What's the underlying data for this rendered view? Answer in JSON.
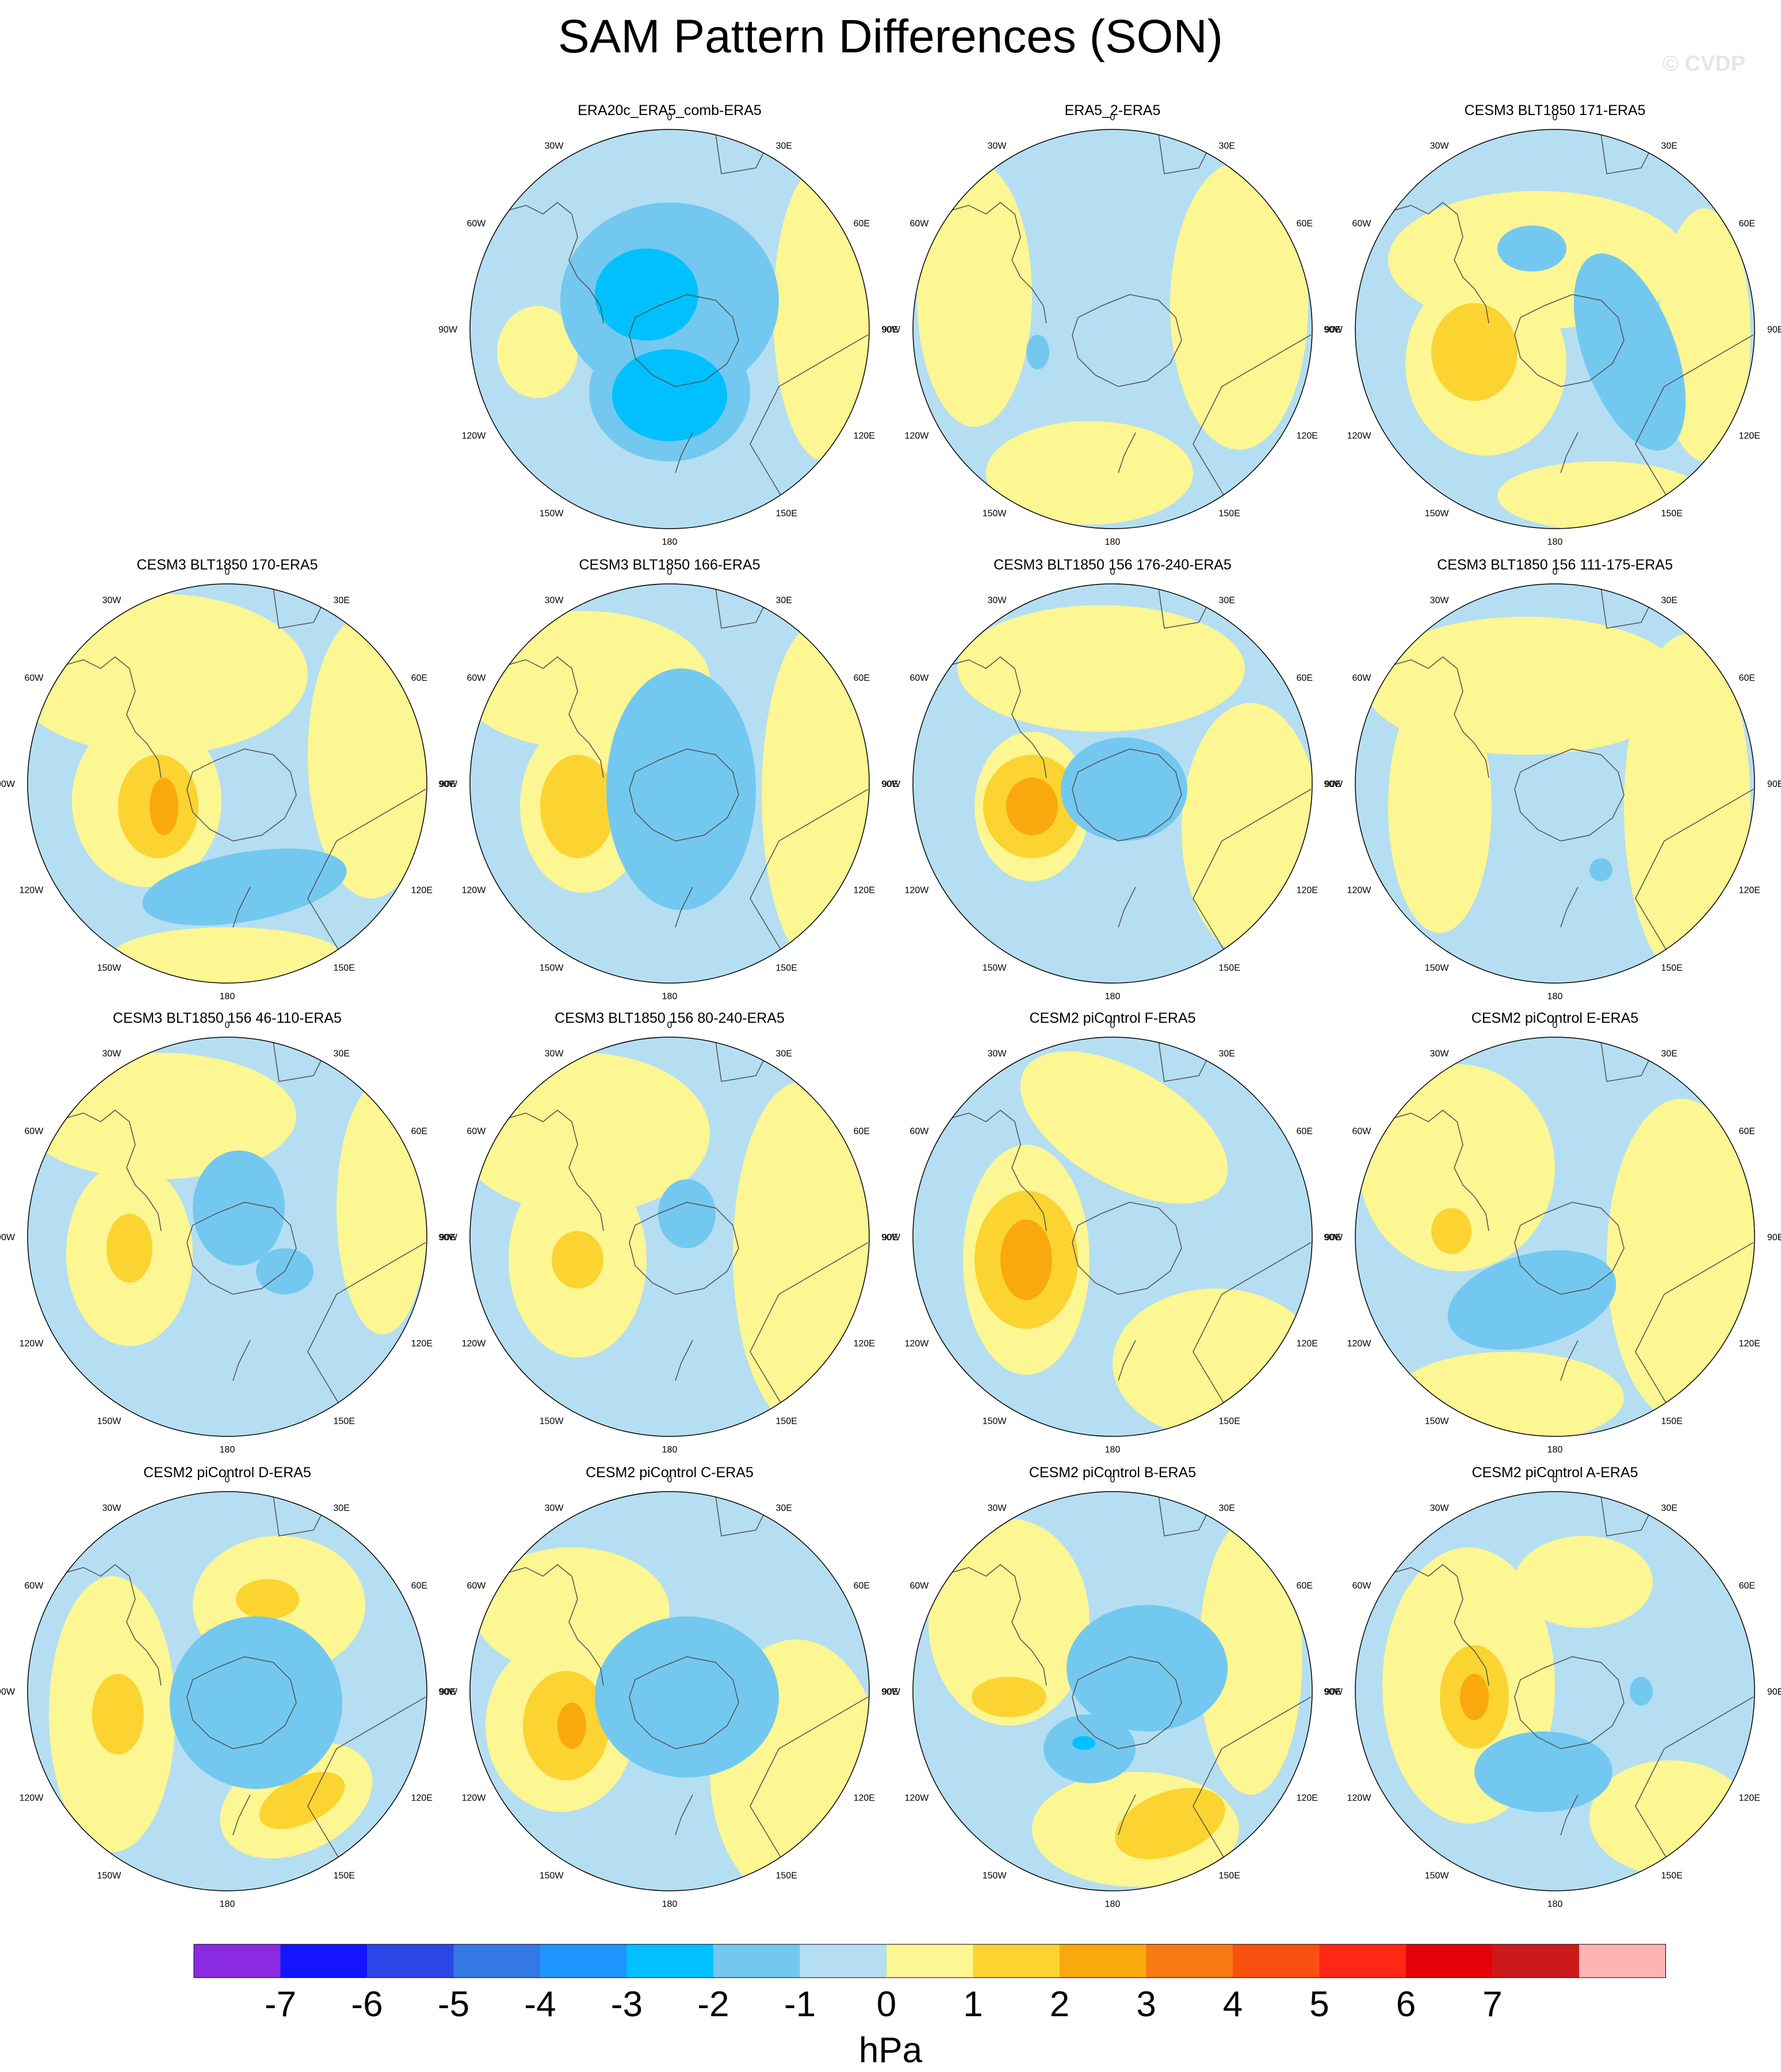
{
  "title": "SAM Pattern Differences (SON)",
  "watermark": "© CVDP",
  "colors": {
    "neg7": "#8a2be2",
    "neg6": "#1414ff",
    "neg5": "#2b46e6",
    "neg4": "#3478e6",
    "neg3": "#1e96ff",
    "neg2": "#00c0ff",
    "neg1": "#73c8f0",
    "zero_neg": "#b5def2",
    "zero_pos": "#fcf693",
    "pos1": "#fbd431",
    "pos2": "#f9a90d",
    "pos3": "#f57a10",
    "pos4": "#fa5010",
    "pos5": "#ff2814",
    "pos6": "#e6000a",
    "pos7": "#cc1a1a",
    "pos8": "#fdb3b3",
    "coast": "#505050"
  },
  "lon_labels": [
    "0",
    "30E",
    "60E",
    "90E",
    "120E",
    "150E",
    "180",
    "150W",
    "120W",
    "90W",
    "60W",
    "30W"
  ],
  "panels": [
    {
      "title": "ERA20c_ERA5_comb-ERA5",
      "row": 0,
      "col": 1
    },
    {
      "title": "ERA5_2-ERA5",
      "row": 0,
      "col": 2
    },
    {
      "title": "CESM3 BLT1850 171-ERA5",
      "row": 0,
      "col": 3
    },
    {
      "title": "CESM3 BLT1850 170-ERA5",
      "row": 1,
      "col": 0
    },
    {
      "title": "CESM3 BLT1850 166-ERA5",
      "row": 1,
      "col": 1
    },
    {
      "title": "CESM3 BLT1850 156 176-240-ERA5",
      "row": 1,
      "col": 2
    },
    {
      "title": "CESM3 BLT1850 156 111-175-ERA5",
      "row": 1,
      "col": 3
    },
    {
      "title": "CESM3 BLT1850 156 46-110-ERA5",
      "row": 2,
      "col": 0
    },
    {
      "title": "CESM3 BLT1850 156 80-240-ERA5",
      "row": 2,
      "col": 1
    },
    {
      "title": "CESM2 piControl F-ERA5",
      "row": 2,
      "col": 2
    },
    {
      "title": "CESM2 piControl E-ERA5",
      "row": 2,
      "col": 3
    },
    {
      "title": "CESM2 piControl D-ERA5",
      "row": 3,
      "col": 0
    },
    {
      "title": "CESM2 piControl C-ERA5",
      "row": 3,
      "col": 1
    },
    {
      "title": "CESM2 piControl B-ERA5",
      "row": 3,
      "col": 2
    },
    {
      "title": "CESM2 piControl A-ERA5",
      "row": 3,
      "col": 3
    }
  ],
  "colorbar": {
    "levels": [
      "-7",
      "-6",
      "-5",
      "-4",
      "-3",
      "-2",
      "-1",
      "0",
      "1",
      "2",
      "3",
      "4",
      "5",
      "6",
      "7"
    ],
    "units": "hPa",
    "colors": [
      "#8a2be2",
      "#1414ff",
      "#2b46e6",
      "#3478e6",
      "#1e96ff",
      "#00c0ff",
      "#73c8f0",
      "#b5def2",
      "#fcf693",
      "#fbd431",
      "#f9a90d",
      "#f57a10",
      "#fa5010",
      "#ff2814",
      "#e6000a",
      "#cc1a1a",
      "#fdb3b3"
    ]
  }
}
